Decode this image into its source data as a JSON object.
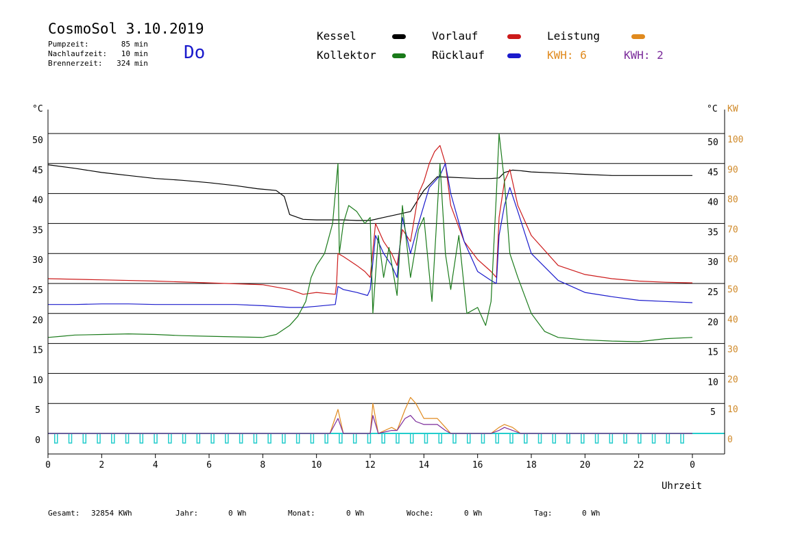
{
  "header": {
    "title": "CosmoSol 3.10.2019",
    "day": "Do",
    "stats": [
      {
        "label": "Pumpzeit:",
        "value": "85",
        "unit": "min"
      },
      {
        "label": "Nachlaufzeit:",
        "value": "10",
        "unit": "min"
      },
      {
        "label": "Brennerzeit:",
        "value": "324",
        "unit": "min"
      }
    ]
  },
  "legend": {
    "kessel": "Kessel",
    "vorlauf": "Vorlauf",
    "leistung": "Leistung",
    "kollektor": "Kollektor",
    "ruecklauf": "Rücklauf",
    "kwh1": "KWH: 6",
    "kwh2": "KWH: 2"
  },
  "footer": {
    "gesamt_label": "Gesamt:",
    "gesamt_value": "32854 KWh",
    "jahr_label": "Jahr:",
    "jahr_value": "0 Wh",
    "monat_label": "Monat:",
    "monat_value": "0 Wh",
    "woche_label": "Woche:",
    "woche_value": "0 Wh",
    "tag_label": "Tag:",
    "tag_value": "0 Wh"
  },
  "colors": {
    "kessel": "#000000",
    "vorlauf": "#cc1a1a",
    "ruecklauf": "#1a1acc",
    "kollektor": "#1a7a1a",
    "leistung": "#e08a1e",
    "kwh2": "#7a2a9a",
    "pump": "#22cccc",
    "kw_axis": "#d08a2a"
  },
  "chart_data": {
    "type": "line",
    "xlabel": "Uhrzeit",
    "ylabel_left": "°C",
    "ylabel_right_1": "°C",
    "ylabel_right_2": "KW",
    "xlim": [
      0,
      24
    ],
    "ylim": [
      0,
      50
    ],
    "y2lim": [
      0,
      100
    ],
    "x_ticks": [
      "0",
      "2",
      "4",
      "6",
      "8",
      "10",
      "12",
      "14",
      "16",
      "18",
      "20",
      "22",
      "0"
    ],
    "y_ticks_left": [
      "0",
      "5",
      "10",
      "15",
      "20",
      "25",
      "30",
      "35",
      "40",
      "45",
      "50"
    ],
    "y_ticks_right": [
      "5",
      "10",
      "15",
      "20",
      "25",
      "30",
      "35",
      "40",
      "45",
      "50"
    ],
    "y2_ticks": [
      "0",
      "10",
      "20",
      "30",
      "40",
      "50",
      "60",
      "70",
      "80",
      "90",
      "100"
    ],
    "series": [
      {
        "name": "Kessel",
        "key": "kessel",
        "x": [
          0,
          1,
          2,
          3,
          4,
          5,
          6,
          7,
          7.8,
          8.5,
          8.8,
          9,
          9.5,
          10,
          10.5,
          11,
          11.5,
          12,
          12.5,
          13,
          13.5,
          14,
          14.5,
          15,
          15.5,
          16,
          16.5,
          16.8,
          17,
          17.3,
          17.6,
          18,
          19,
          20,
          21,
          22,
          23,
          24
        ],
        "y": [
          44.8,
          44.2,
          43.5,
          43,
          42.5,
          42.2,
          41.8,
          41.3,
          40.8,
          40.5,
          39.5,
          36.5,
          35.7,
          35.6,
          35.6,
          35.6,
          35.5,
          35.5,
          36,
          36.5,
          37,
          40.5,
          42.8,
          42.7,
          42.6,
          42.5,
          42.5,
          42.6,
          43.5,
          43.9,
          43.8,
          43.6,
          43.4,
          43.2,
          43,
          43,
          43,
          43
        ]
      },
      {
        "name": "Vorlauf",
        "key": "vorlauf",
        "x": [
          0,
          2,
          4,
          6,
          8,
          9,
          9.5,
          10,
          10.7,
          10.75,
          10.8,
          11,
          11.5,
          11.8,
          12,
          12.2,
          12.5,
          12.8,
          13,
          13.2,
          13.5,
          13.8,
          14,
          14.2,
          14.4,
          14.6,
          14.8,
          15,
          15.5,
          16,
          16.5,
          16.7,
          16.8,
          17,
          17.2,
          17.5,
          18,
          19,
          20,
          21,
          22,
          23,
          24
        ],
        "y": [
          25.8,
          25.6,
          25.4,
          25.1,
          24.8,
          24,
          23.2,
          23.5,
          23.2,
          25,
          30,
          29.5,
          28,
          27,
          26,
          35,
          32,
          30,
          28,
          34,
          32,
          40,
          42,
          45,
          47,
          48,
          45,
          38,
          32,
          29,
          27,
          26,
          36,
          42,
          44,
          38,
          33,
          28,
          26.5,
          25.8,
          25.4,
          25.2,
          25.1
        ]
      },
      {
        "name": "Rücklauf",
        "key": "ruecklauf",
        "x": [
          0,
          1,
          2,
          3,
          4,
          5,
          6,
          7,
          8,
          9,
          9.5,
          10,
          10.7,
          10.75,
          10.8,
          11,
          11.5,
          11.9,
          12,
          12.2,
          12.5,
          12.8,
          13,
          13.2,
          13.5,
          13.8,
          14,
          14.2,
          14.4,
          14.6,
          14.8,
          15,
          15.5,
          16,
          16.5,
          16.7,
          16.8,
          17,
          17.2,
          17.5,
          18,
          19,
          20,
          21,
          22,
          23,
          24
        ],
        "y": [
          21.5,
          21.5,
          21.6,
          21.6,
          21.5,
          21.5,
          21.5,
          21.5,
          21.3,
          21,
          21,
          21.2,
          21.5,
          23,
          24.5,
          24,
          23.5,
          23,
          24,
          33,
          30,
          28,
          26,
          36,
          30,
          35,
          38,
          41,
          42,
          43,
          45,
          40,
          32,
          27,
          25.5,
          25,
          33,
          38,
          41,
          37,
          30,
          25.5,
          23.5,
          22.8,
          22.2,
          22,
          21.8
        ]
      },
      {
        "name": "Kollektor",
        "key": "kollektor",
        "x": [
          0,
          0.5,
          1,
          2,
          3,
          4,
          5,
          6,
          7,
          8,
          8.5,
          9,
          9.3,
          9.6,
          9.8,
          10,
          10.3,
          10.6,
          10.8,
          10.85,
          11,
          11.2,
          11.5,
          11.8,
          12,
          12.1,
          12.3,
          12.5,
          12.7,
          13,
          13.2,
          13.5,
          13.8,
          14,
          14.3,
          14.6,
          14.8,
          15,
          15.3,
          15.6,
          16,
          16.3,
          16.5,
          16.7,
          16.8,
          17,
          17.2,
          17.5,
          18,
          18.5,
          19,
          20,
          21,
          22,
          23,
          24
        ],
        "y": [
          16,
          16.2,
          16.4,
          16.5,
          16.6,
          16.5,
          16.3,
          16.2,
          16.1,
          16,
          16.5,
          18,
          19.5,
          22,
          26,
          28,
          30,
          35,
          45,
          30,
          35,
          38,
          37,
          35,
          36,
          20,
          33,
          26,
          31,
          23,
          38,
          26,
          34,
          36,
          22,
          45,
          30,
          24,
          33,
          20,
          21,
          18,
          22,
          40,
          50,
          42,
          30,
          26,
          20,
          17,
          16,
          15.6,
          15.4,
          15.3,
          15.8,
          16
        ]
      },
      {
        "name": "Leistung",
        "key": "leistung",
        "axis": "kw",
        "x": [
          0,
          10.5,
          10.8,
          11,
          12,
          12.1,
          12.3,
          12.8,
          13,
          13.3,
          13.5,
          13.7,
          14,
          14.5,
          14.8,
          15,
          16.5,
          16.8,
          17,
          17.3,
          17.6,
          18,
          24
        ],
        "y": [
          0,
          0,
          8,
          0,
          0,
          10,
          0,
          2,
          1,
          8,
          12,
          10,
          5,
          5,
          2,
          0,
          0,
          2,
          3,
          2,
          0,
          0,
          0
        ]
      },
      {
        "name": "KWH: 2",
        "key": "kwh2",
        "axis": "kw",
        "x": [
          0,
          10.5,
          10.8,
          11,
          12,
          12.1,
          12.3,
          12.8,
          13,
          13.3,
          13.5,
          13.7,
          14,
          14.5,
          14.8,
          15,
          16.5,
          16.8,
          17,
          17.3,
          17.6,
          18,
          24
        ],
        "y": [
          0,
          0,
          5,
          0,
          0,
          6,
          0,
          1,
          1,
          5,
          6,
          4,
          3,
          3,
          1,
          0,
          0,
          1,
          2,
          1,
          0,
          0,
          0
        ]
      }
    ]
  }
}
